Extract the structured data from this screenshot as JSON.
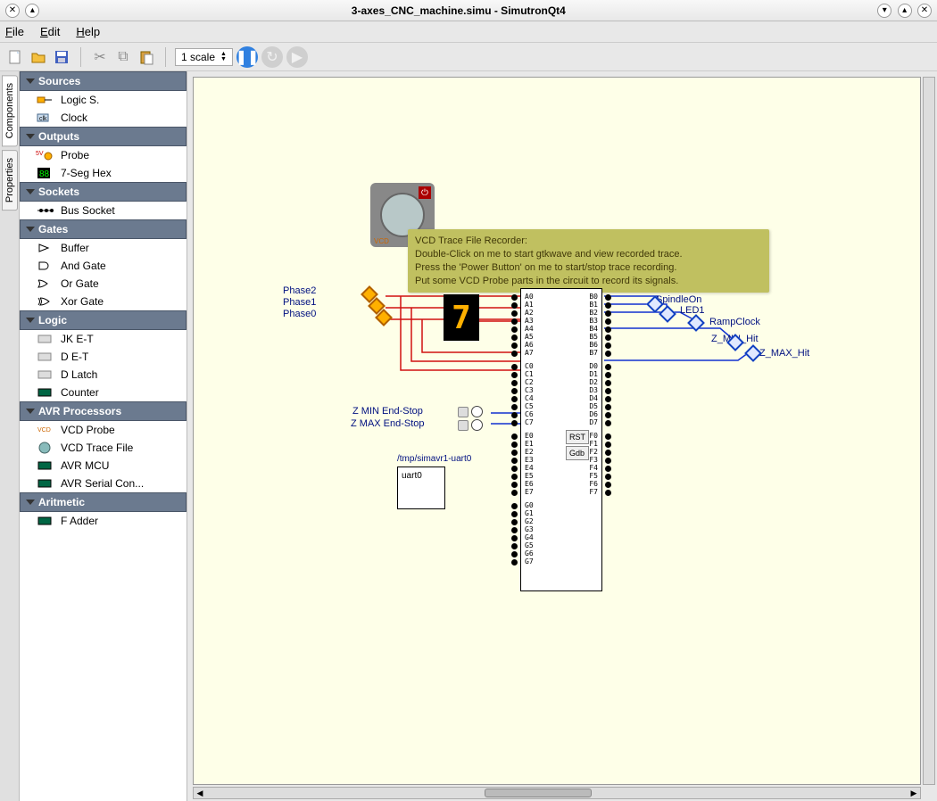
{
  "window": {
    "title": "3-axes_CNC_machine.simu - SimutronQt4"
  },
  "menu": {
    "file": "File",
    "edit": "Edit",
    "help": "Help"
  },
  "toolbar": {
    "scale_label": "1 scale"
  },
  "tabs": {
    "components": "Components",
    "properties": "Properties"
  },
  "categories": [
    {
      "name": "Sources",
      "items": [
        "Logic S.",
        "Clock"
      ]
    },
    {
      "name": "Outputs",
      "items": [
        "Probe",
        "7-Seg Hex"
      ]
    },
    {
      "name": "Sockets",
      "items": [
        "Bus Socket"
      ]
    },
    {
      "name": "Gates",
      "items": [
        "Buffer",
        "And Gate",
        "Or Gate",
        "Xor Gate"
      ]
    },
    {
      "name": "Logic",
      "items": [
        "JK E-T",
        "D E-T",
        "D Latch",
        "Counter"
      ]
    },
    {
      "name": "AVR Processors",
      "items": [
        "VCD Probe",
        "VCD Trace File",
        "AVR MCU",
        "AVR Serial Con..."
      ]
    },
    {
      "name": "Aritmetic",
      "items": [
        "F Adder"
      ]
    }
  ],
  "tooltip": {
    "title": "VCD Trace File Recorder:",
    "l1": "Double-Click on me to start gtkwave and view recorded trace.",
    "l2": "Press the 'Power Button' on me to start/stop trace recording.",
    "l3": "Put some VCD Probe parts in the circuit to record its signals."
  },
  "vcd": {
    "label": "VCD"
  },
  "seg7": {
    "digit": "7"
  },
  "phases": {
    "p2": "Phase2",
    "p1": "Phase1",
    "p0": "Phase0"
  },
  "endstops": {
    "zmin": "Z MIN End-Stop",
    "zmax": "Z MAX End-Stop"
  },
  "uart": {
    "path": "/tmp/simavr1-uart0",
    "name": "uart0"
  },
  "chip_buttons": {
    "rst": "RST",
    "gdb": "Gdb"
  },
  "chip_ports": {
    "left": [
      "A0",
      "A1",
      "A2",
      "A3",
      "A4",
      "A5",
      "A6",
      "A7",
      "",
      "C0",
      "C1",
      "C2",
      "C3",
      "C4",
      "C5",
      "C6",
      "C7",
      "",
      "E0",
      "E1",
      "E2",
      "E3",
      "E4",
      "E5",
      "E6",
      "E7",
      "",
      "G0",
      "G1",
      "G2",
      "G3",
      "G4",
      "G5",
      "G6",
      "G7"
    ],
    "right": [
      "B0",
      "B1",
      "B2",
      "B3",
      "B4",
      "B5",
      "B6",
      "B7",
      "",
      "D0",
      "D1",
      "D2",
      "D3",
      "D4",
      "D5",
      "D6",
      "D7",
      "",
      "F0",
      "F1",
      "F2",
      "F3",
      "F4",
      "F5",
      "F6",
      "F7"
    ]
  },
  "probes": {
    "spindle": "SpindleOn",
    "led1": "LED1",
    "ramp": "RampClock",
    "zmin": "Z_MIN_Hit",
    "zmax": "Z_MAX_Hit"
  },
  "colors": {
    "canvas_bg": "#feffe8",
    "cat_bg": "#6b7a8f",
    "tooltip_bg": "#c0c060",
    "wire_red": "#d01010",
    "wire_blue": "#1030d0",
    "net_label": "#001080"
  }
}
